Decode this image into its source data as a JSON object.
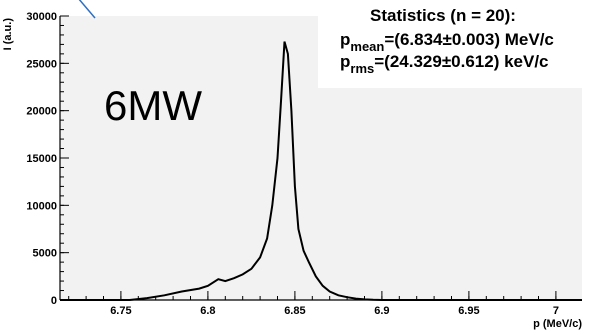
{
  "chart_data": {
    "type": "line",
    "xlabel": "p (MeV/c)",
    "ylabel": "I (a.u.)",
    "xlim": [
      6.715,
      7.015
    ],
    "ylim": [
      0,
      30000
    ],
    "x_ticks": [
      "6.75",
      "6.8",
      "6.85",
      "6.9",
      "6.95",
      "7"
    ],
    "y_ticks": [
      "0",
      "5000",
      "10000",
      "15000",
      "20000",
      "25000",
      "30000"
    ],
    "series": [
      {
        "x": [
          6.755,
          6.765,
          6.775,
          6.785,
          6.795,
          6.8,
          6.806,
          6.81,
          6.815,
          6.82,
          6.825,
          6.83,
          6.834,
          6.837,
          6.84,
          6.842,
          6.844,
          6.846,
          6.848,
          6.85,
          6.852,
          6.855,
          6.858,
          6.862,
          6.866,
          6.87,
          6.875,
          6.88,
          6.885,
          6.89,
          6.895,
          6.9
        ],
        "y": [
          0,
          200,
          500,
          900,
          1200,
          1500,
          2200,
          2000,
          2300,
          2700,
          3300,
          4500,
          6500,
          10000,
          15000,
          21000,
          27300,
          26000,
          20000,
          12000,
          7500,
          5200,
          4000,
          2500,
          1500,
          900,
          500,
          300,
          150,
          60,
          20,
          0
        ]
      }
    ],
    "grid": false,
    "legend": "none",
    "stats_box": {
      "title": "Statistics (n = 20):",
      "mean_symbol": "p",
      "mean_sub": "mean",
      "mean_text": "=(6.834±0.003) MeV/c",
      "rms_symbol": "p",
      "rms_sub": "rms",
      "rms_text": "=(24.329±0.612) keV/c"
    },
    "annotation": "6MW",
    "colors": {
      "frame": "#000000",
      "line": "#000000",
      "plot_bg": "#f2f2f2",
      "arrow": "#2e6fc4"
    }
  }
}
